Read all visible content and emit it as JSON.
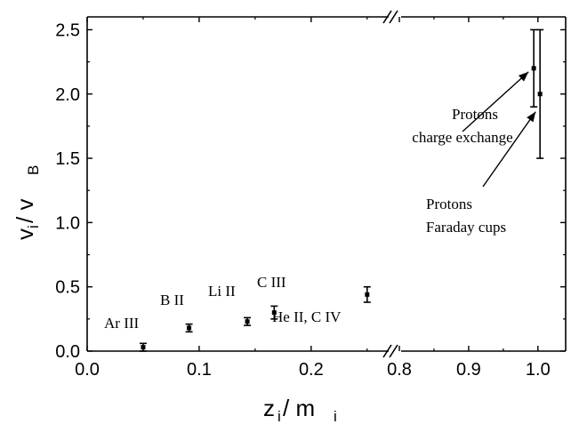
{
  "chart_data": {
    "type": "scatter",
    "x_axis": {
      "label_main": "z",
      "label_sub": "i",
      "label_sep": " / m",
      "label_sub2": "i",
      "segments": [
        {
          "range": [
            0.0,
            0.27
          ],
          "ticks": [
            "0.0",
            "0.1",
            "0.2"
          ]
        },
        {
          "range": [
            0.8,
            1.04
          ],
          "ticks": [
            "0.8",
            "0.9",
            "1.0"
          ]
        }
      ],
      "break_between": [
        0.27,
        0.8
      ]
    },
    "y_axis": {
      "label_main": "v",
      "label_sub": "i",
      "label_sep": " / v",
      "label_sub2": "B",
      "range": [
        0.0,
        2.6
      ],
      "ticks": [
        "0.0",
        "0.5",
        "1.0",
        "1.5",
        "2.0",
        "2.5"
      ]
    },
    "points": [
      {
        "name": "Ar III",
        "x": 0.05,
        "y": 0.03,
        "err": 0.03
      },
      {
        "name": "B II",
        "x": 0.091,
        "y": 0.18,
        "err": 0.03
      },
      {
        "name": "Li II",
        "x": 0.143,
        "y": 0.23,
        "err": 0.03
      },
      {
        "name": "C III",
        "x": 0.167,
        "y": 0.3,
        "err": 0.05
      },
      {
        "name": "He II, C IV",
        "x": 0.25,
        "y": 0.44,
        "err": 0.06
      },
      {
        "name": "Protons charge exchange",
        "x": 0.994,
        "y": 2.2,
        "err": 0.3
      },
      {
        "name": "Protons Faraday cups",
        "x": 1.003,
        "y": 2.0,
        "err": 0.5
      }
    ],
    "annotations": [
      {
        "text": "Ar III"
      },
      {
        "text": "B II"
      },
      {
        "text": "Li II"
      },
      {
        "text": "C III"
      },
      {
        "text": "He II, C IV"
      },
      {
        "text": "Protons"
      },
      {
        "text": "charge exchange"
      },
      {
        "text": "Protons"
      },
      {
        "text": "Faraday cups"
      }
    ],
    "grid": false,
    "legend": "none"
  }
}
